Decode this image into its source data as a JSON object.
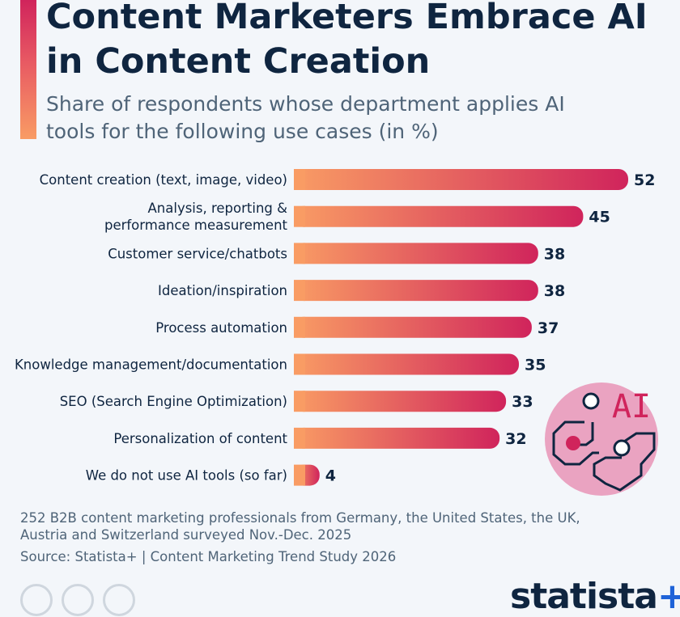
{
  "title": "Content Marketers Embrace AI in Content Creation",
  "subtitle": "Share of respondents whose department applies AI tools for the following use cases (in %)",
  "chart_data": {
    "type": "bar",
    "orientation": "horizontal",
    "unit": "%",
    "xlim": [
      0,
      52
    ],
    "categories": [
      [
        "Content creation (text, image, video)"
      ],
      [
        "Analysis, reporting &",
        "performance measurement"
      ],
      [
        "Customer service/chatbots"
      ],
      [
        "Ideation/inspiration"
      ],
      [
        "Process automation"
      ],
      [
        "Knowledge management/documentation"
      ],
      [
        "SEO (Search Engine Optimization)"
      ],
      [
        "Personalization of content"
      ],
      [
        "We do not use AI tools (so far)"
      ]
    ],
    "values": [
      52,
      45,
      38,
      38,
      37,
      35,
      33,
      32,
      4
    ],
    "colors": {
      "bar_start": "#f99c64",
      "bar_end": "#d0245c",
      "label": "#0f2540"
    }
  },
  "icon": {
    "name": "ai-brain-icon",
    "text": "AI"
  },
  "footer": {
    "note": "252 B2B content marketing professionals from Germany, the United States, the UK, Austria and Switzerland surveyed Nov.-Dec. 2025",
    "source": "Source: Statista+ | Content Marketing Trend Study 2026"
  },
  "brand": {
    "name": "statista",
    "plus": "+"
  }
}
